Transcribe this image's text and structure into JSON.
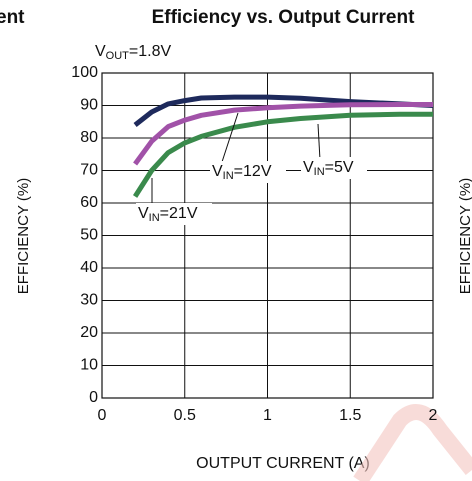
{
  "left_fragment": "ent",
  "right_fragment": "EFFICIENCY (%)",
  "chart_data": {
    "type": "line",
    "title": "Efficiency vs. Output Current",
    "subtitle": {
      "main": "V",
      "sub": "OUT",
      "rest": "=1.8V"
    },
    "x_label": "OUTPUT CURRENT (A)",
    "y_label": "EFFICIENCY (%)",
    "x": [
      0.2,
      0.3,
      0.4,
      0.5,
      0.6,
      0.8,
      1.0,
      1.2,
      1.5,
      1.8,
      2.0
    ],
    "series": [
      {
        "color": "#1e2a5c",
        "values": [
          84,
          88,
          90.5,
          91.5,
          92.3,
          92.6,
          92.6,
          92.2,
          91.2,
          90.5,
          90
        ]
      },
      {
        "color": "#a152a8",
        "values": [
          72,
          79,
          83.5,
          85.5,
          87,
          88.6,
          89.3,
          89.8,
          90.2,
          90.3,
          90.3
        ]
      },
      {
        "color": "#3a8a4c",
        "values": [
          62,
          70,
          75.5,
          78.5,
          80.5,
          83.3,
          85,
          86,
          87,
          87.3,
          87.3
        ]
      }
    ],
    "annotations": [
      {
        "main": "V",
        "sub": "IN",
        "rest": "=12V"
      },
      {
        "main": "V",
        "sub": "IN",
        "rest": "=5V"
      },
      {
        "main": "V",
        "sub": "IN",
        "rest": "=21V"
      }
    ],
    "xlim": [
      0,
      2
    ],
    "xticks": [
      0,
      0.5,
      1,
      1.5,
      2
    ],
    "ylim": [
      0,
      100
    ],
    "yticks": [
      0,
      10,
      20,
      30,
      40,
      50,
      60,
      70,
      80,
      90,
      100
    ],
    "grid": true
  }
}
